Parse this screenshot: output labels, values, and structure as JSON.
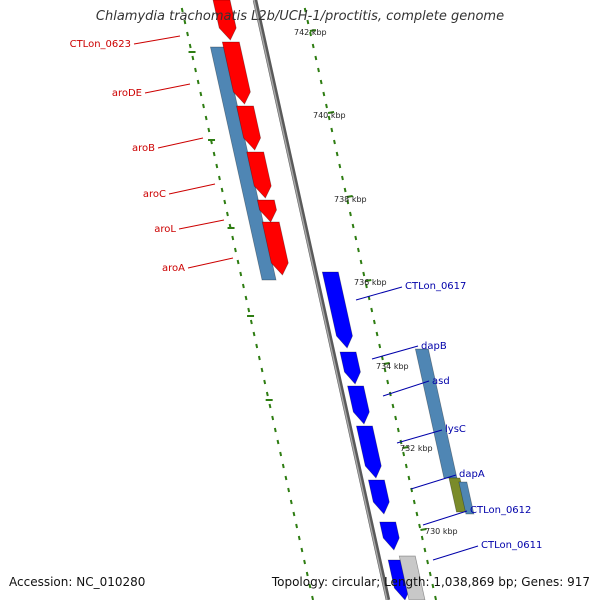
{
  "title": "Chlamydia trachomatis L2b/UCH-1/proctitis, complete genome",
  "accession": "Accession: NC_010280",
  "summary": "Topology: circular; Length: 1,038,869 bp; Genes: 917",
  "colors": {
    "forward_cds": "#ff0000",
    "reverse_cds": "#0000ff",
    "orf_blue": "#4f86b4",
    "orf_olive": "#7a8b2a",
    "backbone": "#7f7f7f",
    "tick": "#2e7d12",
    "label_forward": "#cc0000",
    "label_reverse": "#0000aa",
    "other": "#c8c8c8"
  },
  "ticks": [
    "742 kbp",
    "740 kbp",
    "738 kbp",
    "736 kbp",
    "734 kbp",
    "732 kbp",
    "730 kbp"
  ],
  "genes_left": [
    "CTLon_0623",
    "aroDE",
    "aroB",
    "aroC",
    "aroL",
    "aroA"
  ],
  "genes_right": [
    "CTLon_0617",
    "dapB",
    "asd",
    "lysC",
    "dapA",
    "CTLon_0612",
    "CTLon_0611"
  ]
}
